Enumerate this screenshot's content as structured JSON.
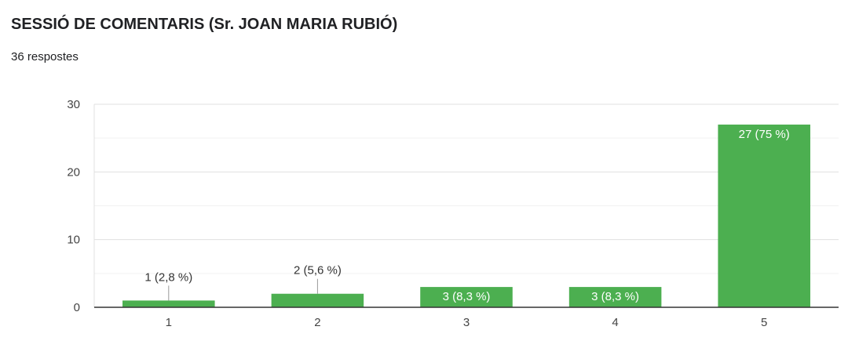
{
  "title": "SESSIÓ DE COMENTARIS  (Sr. JOAN MARIA RUBIÓ)",
  "subtitle": "36 respostes",
  "colors": {
    "bar": "#4caf50",
    "grid": "#e0e0e0",
    "axis": "#333333",
    "label_inside": "#ffffff",
    "label_outside": "#333333"
  },
  "chart_data": {
    "type": "bar",
    "categories": [
      "1",
      "2",
      "3",
      "4",
      "5"
    ],
    "values": [
      1,
      2,
      3,
      3,
      27
    ],
    "data_labels": [
      "1 (2,8 %)",
      "2 (5,6 %)",
      "3 (8,3 %)",
      "3 (8,3 %)",
      "27 (75 %)"
    ],
    "yticks": [
      0,
      10,
      20,
      30
    ],
    "ylim": [
      0,
      30
    ],
    "grid": true,
    "legend": "none"
  }
}
